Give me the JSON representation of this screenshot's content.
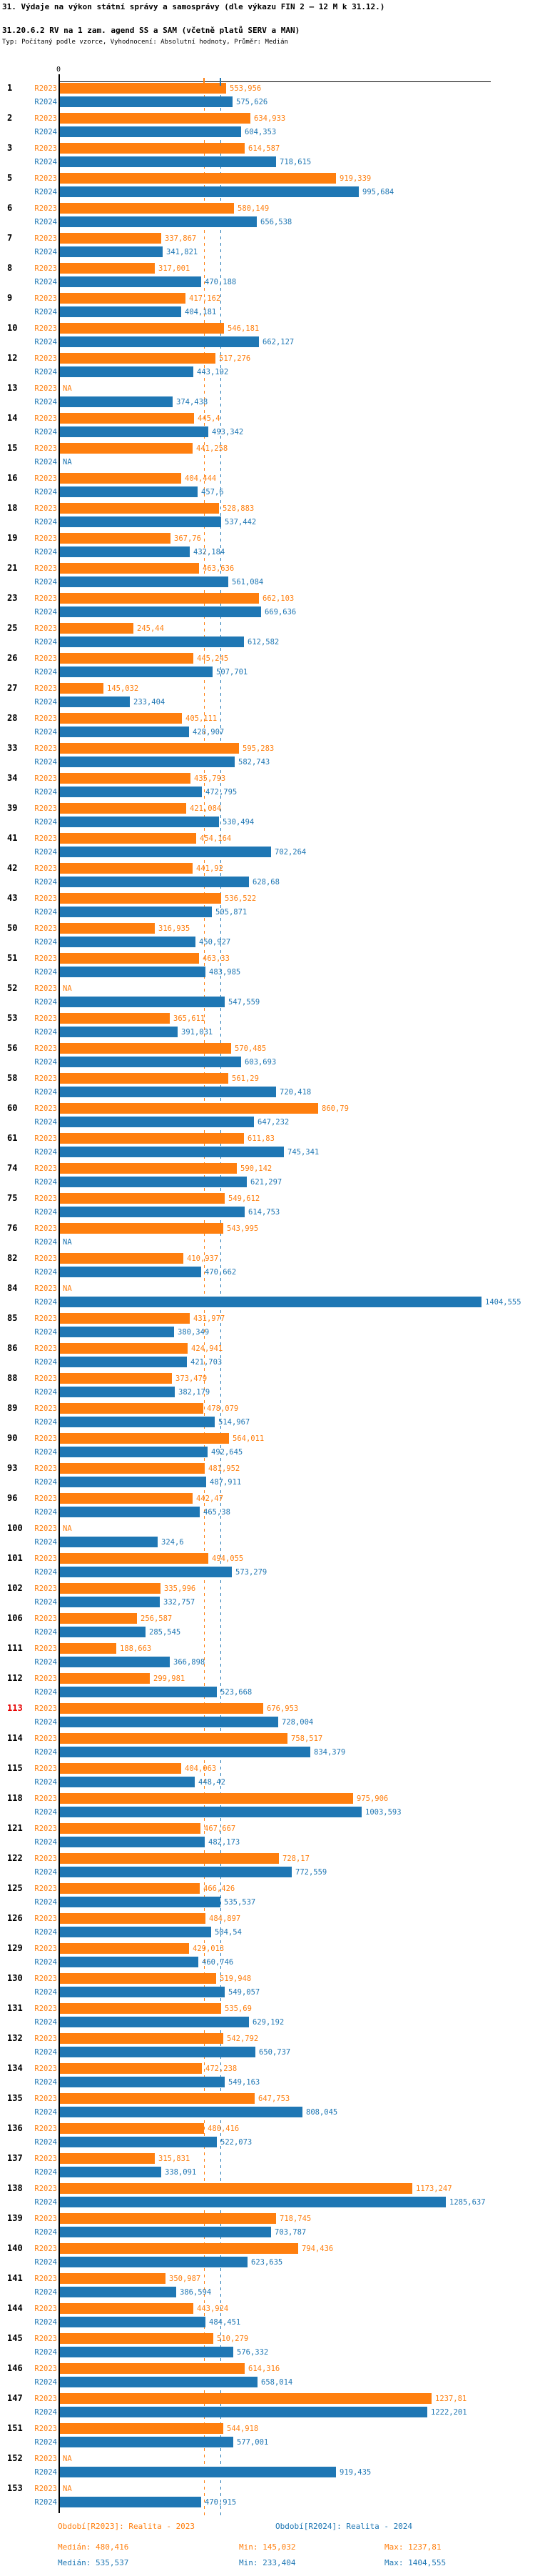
{
  "title": "31. Výdaje na výkon státní správy a samosprávy (dle výkazu FIN 2 – 12 M k 31.12.)",
  "subtitle": "31.20.6.2 RV na 1 zam. agend SS a SAM (včetně platů SERV a MAN)",
  "type_line": "Typ: Počítaný podle vzorce, Vyhodnocení: Absolutní hodnoty, Průměr: Medián",
  "axis": {
    "zero_label": "0"
  },
  "na_label": "NA",
  "colors": {
    "r2023": "#ff7f0e",
    "r2024": "#1f77b4",
    "highlight_id": "#e60000",
    "axis": "#000000"
  },
  "legend": {
    "r2023": "Období[R2023]: Realita - 2023",
    "r2024": "Období[R2024]: Realita - 2024"
  },
  "stats": {
    "r2023": {
      "median": "Medián: 480,416",
      "min": "Min: 145,032",
      "max": "Max: 1237,81"
    },
    "r2024": {
      "median": "Medián: 535,537",
      "min": "Min: 233,404",
      "max": "Max: 1404,555"
    }
  },
  "chart_data": {
    "type": "bar",
    "orientation": "horizontal",
    "title": "31.20.6.2 RV na 1 zam. agend SS a SAM (včetně platů SERV a MAN)",
    "xlim": [
      0,
      1437
    ],
    "grid": false,
    "decimal_separator": ",",
    "highlighted_category": 113,
    "categories": [
      1,
      2,
      3,
      5,
      6,
      7,
      8,
      9,
      10,
      12,
      13,
      14,
      15,
      16,
      18,
      19,
      21,
      23,
      25,
      26,
      27,
      28,
      33,
      34,
      39,
      41,
      42,
      43,
      50,
      51,
      52,
      53,
      56,
      58,
      60,
      61,
      74,
      75,
      76,
      82,
      84,
      85,
      86,
      88,
      89,
      90,
      93,
      96,
      100,
      101,
      102,
      106,
      111,
      112,
      113,
      114,
      115,
      118,
      121,
      122,
      125,
      126,
      129,
      130,
      131,
      132,
      134,
      135,
      136,
      137,
      138,
      139,
      140,
      141,
      144,
      145,
      146,
      147,
      151,
      152,
      153
    ],
    "series": [
      {
        "name": "R2023",
        "color": "#ff7f0e",
        "median": 480.416,
        "min": 145.032,
        "max": 1237.81,
        "values": [
          553.956,
          634.933,
          614.587,
          919.339,
          580.149,
          337.867,
          317.001,
          417.162,
          546.181,
          517.276,
          null,
          445.4,
          441.258,
          404.444,
          528.883,
          367.76,
          463.636,
          662.103,
          245.44,
          445.245,
          145.032,
          405.111,
          595.283,
          435.793,
          421.084,
          454.164,
          441.92,
          536.522,
          316.935,
          463.33,
          null,
          365.611,
          570.485,
          561.29,
          860.79,
          611.83,
          590.142,
          549.612,
          543.995,
          410.937,
          null,
          431.977,
          424.941,
          373.479,
          478.079,
          564.011,
          481.952,
          442.47,
          null,
          494.055,
          335.996,
          256.587,
          188.663,
          299.981,
          676.953,
          758.517,
          404.063,
          975.906,
          467.667,
          728.17,
          466.426,
          484.897,
          429.013,
          519.948,
          535.69,
          542.792,
          472.238,
          647.753,
          480.416,
          315.831,
          1173.247,
          718.745,
          794.436,
          350.987,
          443.924,
          510.279,
          614.316,
          1237.81,
          544.918,
          null,
          null
        ]
      },
      {
        "name": "R2024",
        "color": "#1f77b4",
        "median": 535.537,
        "min": 233.404,
        "max": 1404.555,
        "values": [
          575.626,
          604.353,
          718.615,
          995.684,
          656.538,
          341.821,
          470.188,
          404.181,
          662.127,
          443.192,
          374.438,
          493.342,
          null,
          457.6,
          537.442,
          432.184,
          561.084,
          669.636,
          612.582,
          507.701,
          233.404,
          428.907,
          582.743,
          472.795,
          530.494,
          702.264,
          628.68,
          505.871,
          450.927,
          483.985,
          547.559,
          391.031,
          603.693,
          720.418,
          647.232,
          745.341,
          621.297,
          614.753,
          null,
          470.662,
          1404.555,
          380.349,
          421.703,
          382.179,
          514.967,
          492.645,
          487.911,
          465.38,
          324.6,
          573.279,
          332.757,
          285.545,
          366.898,
          523.668,
          728.004,
          834.379,
          448.42,
          1003.593,
          482.173,
          772.559,
          535.537,
          504.54,
          460.746,
          549.057,
          629.192,
          650.737,
          549.163,
          808.045,
          522.073,
          338.091,
          1285.637,
          703.787,
          623.635,
          386.594,
          484.451,
          576.332,
          658.014,
          1222.201,
          577.001,
          919.435,
          470.915
        ]
      }
    ]
  }
}
